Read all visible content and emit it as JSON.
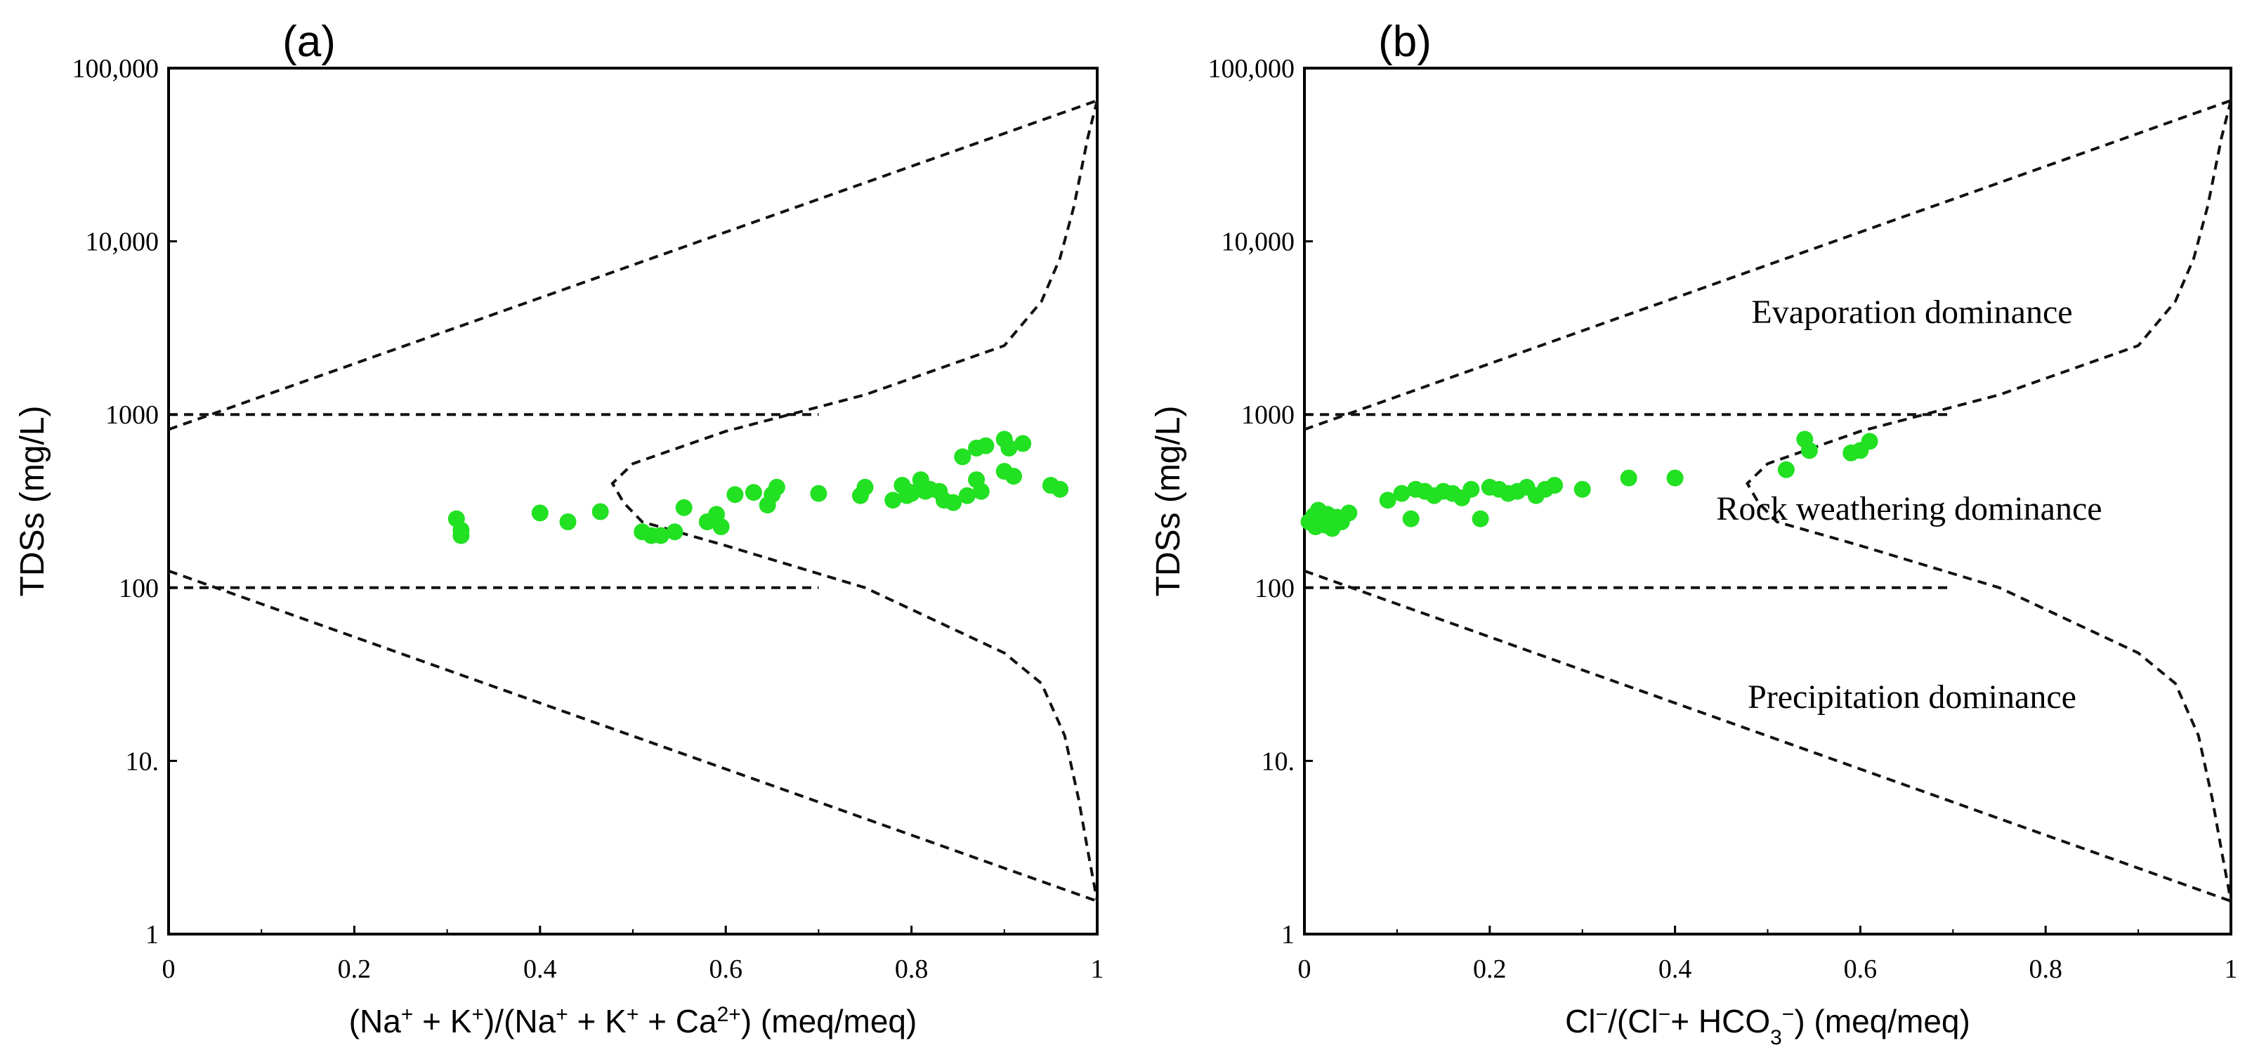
{
  "chart_data": [
    {
      "panel_label": "(a)",
      "type": "scatter",
      "xlabel_parts": [
        {
          "t": "(Na",
          "s": ""
        },
        {
          "t": "+",
          "s": "sup"
        },
        {
          "t": " + K",
          "s": ""
        },
        {
          "t": "+",
          "s": "sup"
        },
        {
          "t": ")/(Na",
          "s": ""
        },
        {
          "t": "+",
          "s": "sup"
        },
        {
          "t": " + K",
          "s": ""
        },
        {
          "t": "+",
          "s": "sup"
        },
        {
          "t": " + Ca",
          "s": ""
        },
        {
          "t": "2+",
          "s": "sup"
        },
        {
          "t": ") (meq/meq)",
          "s": ""
        }
      ],
      "ylabel": "TDSs (mg/L)",
      "xlim": [
        0,
        1
      ],
      "ylim": [
        1,
        100000
      ],
      "y_scale": "log",
      "x_ticks": [
        "0",
        "0.2",
        "0.4",
        "0.6",
        "0.8",
        "1"
      ],
      "y_ticks": [
        "1",
        "10.",
        "100",
        "1000",
        "10,000",
        "100,000"
      ],
      "annotations": [],
      "point_color": "#22e022",
      "x": [
        0.31,
        0.315,
        0.315,
        0.4,
        0.43,
        0.465,
        0.51,
        0.52,
        0.53,
        0.545,
        0.555,
        0.58,
        0.59,
        0.595,
        0.61,
        0.63,
        0.645,
        0.65,
        0.655,
        0.7,
        0.745,
        0.75,
        0.78,
        0.79,
        0.795,
        0.8,
        0.8,
        0.81,
        0.815,
        0.82,
        0.83,
        0.835,
        0.845,
        0.855,
        0.86,
        0.87,
        0.87,
        0.875,
        0.88,
        0.9,
        0.9,
        0.905,
        0.91,
        0.92,
        0.95,
        0.96
      ],
      "y": [
        250,
        215,
        200,
        270,
        240,
        275,
        210,
        200,
        200,
        210,
        290,
        240,
        265,
        225,
        345,
        355,
        300,
        345,
        380,
        350,
        340,
        380,
        320,
        390,
        340,
        350,
        355,
        420,
        360,
        370,
        360,
        320,
        310,
        570,
        340,
        420,
        640,
        360,
        660,
        720,
        470,
        640,
        440,
        680,
        390,
        370
      ]
    },
    {
      "panel_label": "(b)",
      "type": "scatter",
      "xlabel_parts": [
        {
          "t": "Cl",
          "s": ""
        },
        {
          "t": "−",
          "s": "sup"
        },
        {
          "t": "/(Cl",
          "s": ""
        },
        {
          "t": "−",
          "s": "sup"
        },
        {
          "t": "+ HCO",
          "s": ""
        },
        {
          "t": "3",
          "s": "sub"
        },
        {
          "t": "−",
          "s": "sup"
        },
        {
          "t": ") (meq/meq)",
          "s": ""
        }
      ],
      "ylabel": "TDSs (mg/L)",
      "xlim": [
        0,
        1
      ],
      "ylim": [
        1,
        100000
      ],
      "y_scale": "log",
      "x_ticks": [
        "0",
        "0.2",
        "0.4",
        "0.6",
        "0.8",
        "1"
      ],
      "y_ticks": [
        "1",
        "10.",
        "100",
        "1000",
        "10,000",
        "100,000"
      ],
      "annotations": [
        "Evaporation dominance",
        "Rock weathering dominance",
        "Precipitation dominance"
      ],
      "point_color": "#22e022",
      "x": [
        0.005,
        0.01,
        0.012,
        0.015,
        0.02,
        0.022,
        0.025,
        0.03,
        0.035,
        0.04,
        0.048,
        0.09,
        0.105,
        0.115,
        0.12,
        0.13,
        0.14,
        0.15,
        0.16,
        0.17,
        0.18,
        0.19,
        0.2,
        0.21,
        0.22,
        0.23,
        0.24,
        0.25,
        0.26,
        0.27,
        0.3,
        0.35,
        0.4,
        0.52,
        0.54,
        0.545,
        0.59,
        0.6,
        0.61
      ],
      "y": [
        240,
        260,
        225,
        280,
        250,
        230,
        265,
        220,
        255,
        240,
        270,
        320,
        350,
        250,
        370,
        360,
        340,
        360,
        350,
        330,
        370,
        250,
        380,
        370,
        350,
        360,
        380,
        340,
        370,
        390,
        370,
        430,
        430,
        480,
        720,
        620,
        600,
        620,
        700
      ]
    }
  ]
}
